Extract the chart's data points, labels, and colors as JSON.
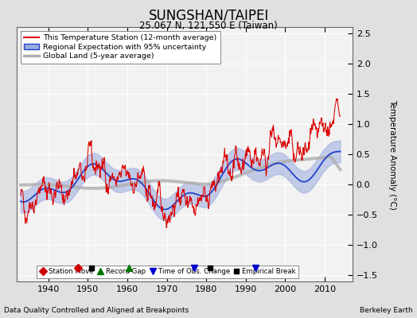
{
  "title": "SUNGSHAN/TAIPEI",
  "subtitle": "25.067 N, 121.550 E (Taiwan)",
  "ylabel": "Temperature Anomaly (°C)",
  "xlabel_note": "Data Quality Controlled and Aligned at Breakpoints",
  "credit": "Berkeley Earth",
  "xlim": [
    1932,
    2017
  ],
  "ylim": [
    -1.6,
    2.6
  ],
  "yticks": [
    -1.5,
    -1.0,
    -0.5,
    0.0,
    0.5,
    1.0,
    1.5,
    2.0,
    2.5
  ],
  "xticks": [
    1940,
    1950,
    1960,
    1970,
    1980,
    1990,
    2000,
    2010
  ],
  "bg_color": "#e0e0e0",
  "plot_bg_color": "#f2f2f2",
  "grid_color": "#ffffff",
  "station_line_color": "#dd0000",
  "regional_line_color": "#2244cc",
  "regional_band_color": "#99aadd",
  "global_line_color": "#b0b0b0",
  "legend_items": [
    "This Temperature Station (12-month average)",
    "Regional Expectation with 95% uncertainty",
    "Global Land (5-year average)"
  ],
  "marker_legend": [
    {
      "label": "Station Move",
      "color": "#cc0000",
      "marker": "D"
    },
    {
      "label": "Record Gap",
      "color": "#007700",
      "marker": "^"
    },
    {
      "label": "Time of Obs. Change",
      "color": "#0000cc",
      "marker": "v"
    },
    {
      "label": "Empirical Break",
      "color": "#000000",
      "marker": "s"
    }
  ],
  "station_moves": [
    1947.5
  ],
  "record_gaps": [
    1960.5
  ],
  "time_obs_changes": [
    1977.0,
    1992.5
  ],
  "empirical_breaks": [
    1951.0,
    1981.0
  ]
}
